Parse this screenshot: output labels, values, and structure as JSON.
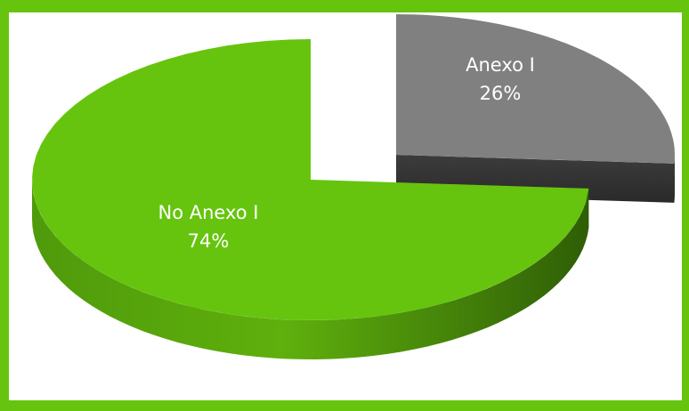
{
  "chart_data": {
    "type": "pie",
    "title": "",
    "slices": [
      {
        "label": "Anexo I",
        "value": 26,
        "percent_label": "26%",
        "color": "#808080",
        "side_color": "#3a3a3a",
        "exploded": true
      },
      {
        "label": "No Anexo I",
        "value": 74,
        "percent_label": "74%",
        "color": "#66c40e",
        "side_color": "#3d7a08",
        "exploded": false
      }
    ],
    "style": "3d-exploded"
  },
  "frame": {
    "border_color": "#66c40e"
  }
}
